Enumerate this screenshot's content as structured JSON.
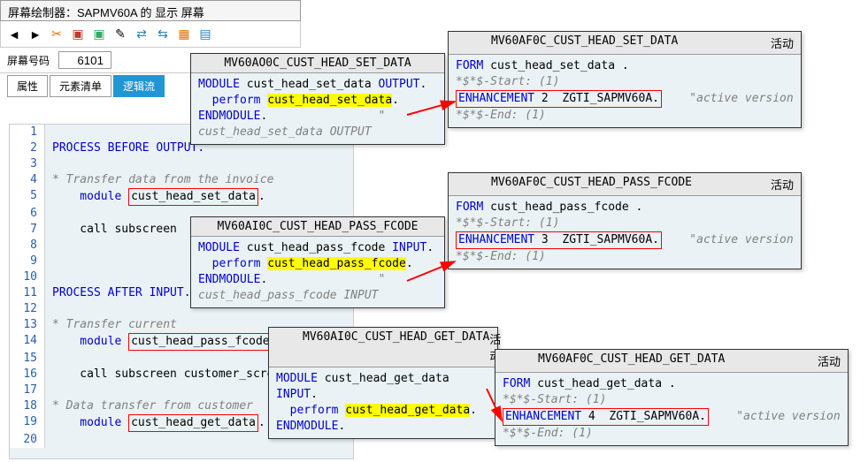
{
  "titleBar": "屏幕绘制器：SAPMV60A 的 显示 屏幕",
  "screenLabel": "屏幕号码",
  "screenNumber": "6101",
  "tabs": {
    "t1": "属性",
    "t2": "元素清单",
    "t3": "逻辑流"
  },
  "codeLines": [
    {
      "n": "1",
      "txt": ""
    },
    {
      "n": "2",
      "txt": "PROCESS BEFORE OUTPUT.",
      "cls": "kw"
    },
    {
      "n": "3",
      "txt": ""
    },
    {
      "n": "4",
      "txt": "* Transfer data from the invoice ",
      "cls": "cmt"
    },
    {
      "n": "5",
      "pre": "    module ",
      "box": "cust_head_set_data",
      "post": "."
    },
    {
      "n": "6",
      "txt": ""
    },
    {
      "n": "7",
      "txt": "    call subscreen"
    },
    {
      "n": "8",
      "txt": ""
    },
    {
      "n": "9",
      "txt": ""
    },
    {
      "n": "10",
      "txt": ""
    },
    {
      "n": "11",
      "txt": "PROCESS AFTER INPUT.",
      "cls": "kw"
    },
    {
      "n": "12",
      "txt": ""
    },
    {
      "n": "13",
      "txt": "* Transfer current",
      "cls": "cmt"
    },
    {
      "n": "14",
      "pre": "    module ",
      "box": "cust_head_pass_fcode"
    },
    {
      "n": "15",
      "txt": ""
    },
    {
      "n": "16",
      "txt": "    call subscreen customer_scre"
    },
    {
      "n": "17",
      "txt": ""
    },
    {
      "n": "18",
      "txt": "* Data transfer from customer ",
      "cls": "cmt"
    },
    {
      "n": "19",
      "pre": "    module ",
      "box": "cust_head_get_data",
      "post": "."
    },
    {
      "n": "20",
      "txt": ""
    }
  ],
  "panels": {
    "p1": {
      "title": "MV60AO0C_CUST_HEAD_SET_DATA",
      "module": "MODULE",
      "name": "cust_head_set_data",
      "io": "OUTPUT",
      "perform": "perform ",
      "call": "cust_head_set_data",
      "end": "ENDMODULE",
      "cmt": "\" cust_head_set_data   OUTPUT"
    },
    "p2": {
      "title": "MV60AI0C_CUST_HEAD_PASS_FCODE",
      "module": "MODULE",
      "name": "cust_head_pass_fcode",
      "io": "INPUT",
      "perform": "perform ",
      "call": "cust_head_pass_fcode",
      "end": "ENDMODULE",
      "cmt": "\" cust_head_pass_fcode  INPUT"
    },
    "p3": {
      "title": "MV60AI0C_CUST_HEAD_GET_DATA",
      "status": "活动",
      "module": "MODULE",
      "name": "cust_head_get_data",
      "io": "INPUT",
      "perform": "perform ",
      "call": "cust_head_get_data",
      "end": "ENDMODULE",
      "cmt": "."
    },
    "f1": {
      "title": "MV60AF0C_CUST_HEAD_SET_DATA",
      "status": "活动",
      "form": "FORM",
      "name": "cust_head_set_data",
      "s1": "*$*$-Start: (1)",
      "enh": "ENHANCEMENT",
      "num": "2",
      "z": "ZGTI_SAPMV60A",
      "ver": "\"active version",
      "s2": "*$*$-End:   (1)"
    },
    "f2": {
      "title": "MV60AF0C_CUST_HEAD_PASS_FCODE",
      "status": "活动",
      "form": "FORM",
      "name": "cust_head_pass_fcode",
      "s1": "*$*$-Start: (1)",
      "enh": "ENHANCEMENT",
      "num": "3",
      "z": "ZGTI_SAPMV60A",
      "ver": "\"active version",
      "s2": "*$*$-End:   (1)"
    },
    "f3": {
      "title": "MV60AF0C_CUST_HEAD_GET_DATA",
      "status": "活动",
      "form": "FORM",
      "name": "cust_head_get_data",
      "s1": "*$*$-Start: (1)",
      "enh": "ENHANCEMENT",
      "num": "4",
      "z": "ZGTI_SAPMV60A",
      "ver": "\"active version",
      "s2": "*$*$-End:   (1)"
    }
  },
  "colors": {
    "keyword": "#0000cd",
    "highlight": "#ffff00",
    "redBox": "#ff0000",
    "codeBg": "#eaf2f5"
  }
}
